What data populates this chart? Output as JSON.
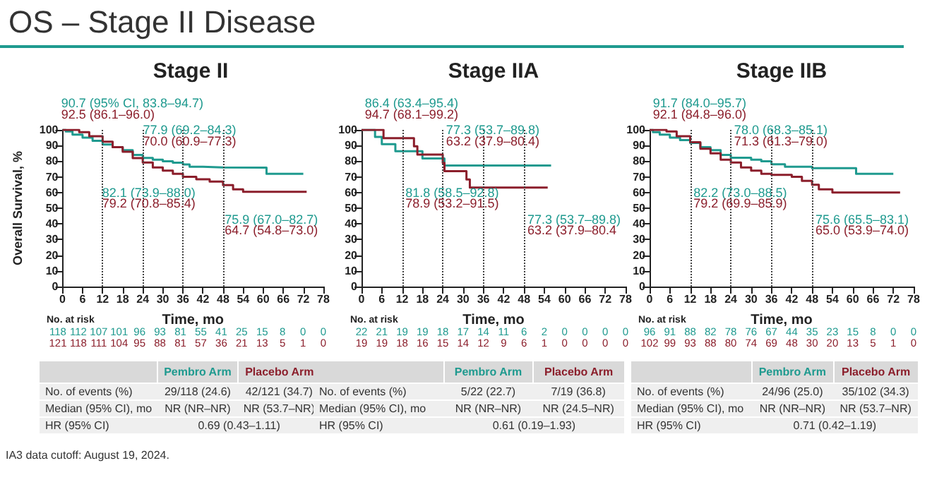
{
  "chart_data": [
    {
      "type": "step",
      "title": "Stage II",
      "xlabel": "Time, mo",
      "ylabel": "Overall Survival, %",
      "xlim": [
        0,
        78
      ],
      "xticks": [
        0,
        6,
        12,
        18,
        24,
        30,
        36,
        42,
        48,
        54,
        60,
        66,
        72,
        78
      ],
      "ylim": [
        0,
        100
      ],
      "yticks": [
        0,
        10,
        20,
        30,
        40,
        50,
        60,
        70,
        80,
        90,
        100
      ],
      "marker": "none",
      "line_style": "solid",
      "ref_lines": [
        {
          "axis": "x",
          "value": 12,
          "color": "#444444",
          "line_style": "dotted"
        },
        {
          "axis": "x",
          "value": 24,
          "color": "#444444",
          "line_style": "dotted"
        },
        {
          "axis": "x",
          "value": 36,
          "color": "#444444",
          "line_style": "dotted"
        },
        {
          "axis": "x",
          "value": 48,
          "color": "#444444",
          "line_style": "dotted"
        }
      ],
      "series": [
        {
          "name": "Pembro Arm",
          "color": "#1f9a8f",
          "x": [
            0,
            1,
            3,
            6,
            9,
            12,
            15,
            18,
            21,
            24,
            27,
            30,
            33,
            36,
            38,
            42,
            48,
            61,
            72
          ],
          "values": [
            100,
            99,
            97,
            95,
            93,
            90.7,
            89,
            87,
            84,
            82.1,
            81,
            80,
            79,
            77.9,
            76.5,
            76,
            75.9,
            72,
            72
          ]
        },
        {
          "name": "Placebo Arm",
          "color": "#8b1e2b",
          "x": [
            0,
            3,
            5,
            8,
            12,
            15,
            18,
            21,
            24,
            27,
            30,
            33,
            36,
            40,
            44,
            48,
            51,
            54,
            73
          ],
          "values": [
            100,
            100,
            98.5,
            96,
            92.5,
            89,
            86,
            82,
            79.2,
            76,
            74,
            72,
            70,
            68.5,
            67,
            64.7,
            62,
            60.5,
            60.5
          ]
        }
      ],
      "annotations": [
        "90.7 (95% CI, 83.8–94.7)",
        "92.5 (86.1–96.0)",
        "82.1 (73.9–88.0)",
        "79.2 (70.8–85.4)",
        "77.9 (69.2–84.3)",
        "70.0 (60.9–77.3)",
        "75.9 (67.0–82.7)",
        "64.7 (54.8–73.0)",
        "No. at risk",
        "118 112 107 101 96 93 81 55 41 25 15 8 0 0",
        "121 118 111 104 95 88 81 57 36 21 13 5 1 0",
        "No. of events (%)",
        "29/118 (24.6)",
        "42/121 (34.7)",
        "Median (95% CI), mo",
        "NR (NR–NR)",
        "NR (53.7–NR)",
        "HR (95% CI)",
        "0.69 (0.43–1.11)",
        "OS – Stage II Disease",
        "IA3 data cutoff: August 19, 2024."
      ]
    },
    {
      "type": "step",
      "title": "Stage IIA",
      "xlabel": "Time, mo",
      "xlim": [
        0,
        78
      ],
      "xticks": [
        0,
        6,
        12,
        18,
        24,
        30,
        36,
        42,
        48,
        54,
        60,
        66,
        72,
        78
      ],
      "ylim": [
        0,
        100
      ],
      "yticks": [
        0,
        10,
        20,
        30,
        40,
        50,
        60,
        70,
        80,
        90,
        100
      ],
      "marker": "none",
      "line_style": "solid",
      "ref_lines": [
        {
          "axis": "x",
          "value": 12,
          "color": "#444444",
          "line_style": "dotted"
        },
        {
          "axis": "x",
          "value": 24,
          "color": "#444444",
          "line_style": "dotted"
        },
        {
          "axis": "x",
          "value": 36,
          "color": "#444444",
          "line_style": "dotted"
        },
        {
          "axis": "x",
          "value": 48,
          "color": "#444444",
          "line_style": "dotted"
        }
      ],
      "series": [
        {
          "name": "Pembro Arm",
          "color": "#1f9a8f",
          "x": [
            0,
            4,
            6,
            10,
            18,
            24.5,
            56
          ],
          "values": [
            100,
            95.5,
            90.9,
            86.4,
            81.8,
            77.3,
            77.3
          ]
        },
        {
          "name": "Placebo Arm",
          "color": "#8b1e2b",
          "x": [
            0,
            6.5,
            15.5,
            16.5,
            24,
            24.5,
            31,
            32,
            55
          ],
          "values": [
            100,
            94.7,
            89.5,
            84.2,
            78.9,
            73.7,
            68.4,
            63.2,
            63.2
          ]
        }
      ],
      "annotations": [
        "86.4 (63.4–95.4)",
        "94.7 (68.1–99.2)",
        "81.8 (58.5–92.8)",
        "78.9 (53.2–91.5)",
        "77.3 (53.7–89.8)",
        "63.2 (37.9–80.4)",
        "77.3 (53.7–89.8)",
        "63.2 (37.9–80.4",
        "No. at risk",
        "22 21 19 19 18 17 14 11 6 2 0 0 0 0",
        "19 19 18 16 15 14 12 9 6 1 0 0 0 0",
        "No. of events (%)",
        "5/22 (22.7)",
        "7/19 (36.8)",
        "Median (95% CI), mo",
        "NR (NR–NR)",
        "NR (24.5–NR)",
        "HR (95% CI)",
        "0.61 (0.19–1.93)"
      ]
    },
    {
      "type": "step",
      "title": "Stage IIB",
      "xlabel": "Time, mo",
      "xlim": [
        0,
        78
      ],
      "xticks": [
        0,
        6,
        12,
        18,
        24,
        30,
        36,
        42,
        48,
        54,
        60,
        66,
        72,
        78
      ],
      "ylim": [
        0,
        100
      ],
      "yticks": [
        0,
        10,
        20,
        30,
        40,
        50,
        60,
        70,
        80,
        90,
        100
      ],
      "marker": "none",
      "line_style": "solid",
      "ref_lines": [
        {
          "axis": "x",
          "value": 12,
          "color": "#444444",
          "line_style": "dotted"
        },
        {
          "axis": "x",
          "value": 24,
          "color": "#444444",
          "line_style": "dotted"
        },
        {
          "axis": "x",
          "value": 36,
          "color": "#444444",
          "line_style": "dotted"
        },
        {
          "axis": "x",
          "value": 48,
          "color": "#444444",
          "line_style": "dotted"
        }
      ],
      "series": [
        {
          "name": "Pembro Arm",
          "color": "#1f9a8f",
          "x": [
            0,
            1,
            3,
            6,
            9,
            12,
            15,
            18,
            21,
            24,
            30,
            33,
            36,
            40,
            48,
            61,
            72
          ],
          "values": [
            100,
            98.5,
            97,
            95,
            93.5,
            91.7,
            89,
            87,
            84,
            82.2,
            81,
            80,
            78,
            76.5,
            75.6,
            72,
            72
          ]
        },
        {
          "name": "Placebo Arm",
          "color": "#8b1e2b",
          "x": [
            0,
            3,
            5,
            8,
            12,
            15,
            18,
            21,
            24,
            27,
            30,
            33,
            36,
            42,
            45,
            48,
            50,
            54,
            74
          ],
          "values": [
            100,
            100,
            99,
            96,
            92.1,
            88,
            85,
            81,
            79.2,
            76,
            74,
            72,
            71.3,
            70,
            67.5,
            65,
            62,
            60,
            60
          ]
        }
      ],
      "annotations": [
        "91.7 (84.0–95.7)",
        "92.1 (84.8–96.0)",
        "82.2 (73.0–88.5)",
        "79.2 (69.9–85.9)",
        "78.0 (68.3–85.1)",
        "71.3 (61.3–79.0)",
        "75.6 (65.5–83.1)",
        "65.0 (53.9–74.0)",
        "No. at risk",
        "96 91 88 82 78 76 67 44 35 23 15 8 0 0",
        "102 99 93 88 80 74 69 48 30 20 13 5 1 0",
        "No. of events (%)",
        "24/96 (25.0)",
        "35/102 (34.3)",
        "Median (95% CI), mo",
        "NR (NR–NR)",
        "NR (53.7–NR)",
        "HR (95% CI)",
        "0.71 (0.42–1.19)"
      ]
    }
  ]
}
